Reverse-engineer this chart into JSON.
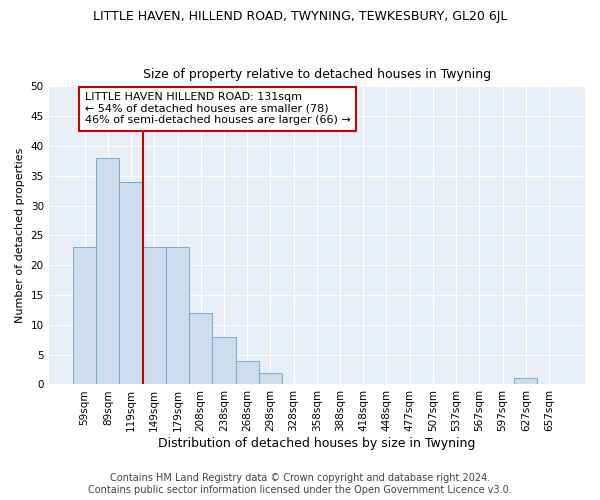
{
  "title": "LITTLE HAVEN, HILLEND ROAD, TWYNING, TEWKESBURY, GL20 6JL",
  "subtitle": "Size of property relative to detached houses in Twyning",
  "xlabel": "Distribution of detached houses by size in Twyning",
  "ylabel": "Number of detached properties",
  "categories": [
    "59sqm",
    "89sqm",
    "119sqm",
    "149sqm",
    "179sqm",
    "208sqm",
    "238sqm",
    "268sqm",
    "298sqm",
    "328sqm",
    "358sqm",
    "388sqm",
    "418sqm",
    "448sqm",
    "477sqm",
    "507sqm",
    "537sqm",
    "567sqm",
    "597sqm",
    "627sqm",
    "657sqm"
  ],
  "values": [
    23,
    38,
    34,
    23,
    23,
    12,
    8,
    4,
    2,
    0,
    0,
    0,
    0,
    0,
    0,
    0,
    0,
    0,
    0,
    1,
    0
  ],
  "bar_color": "#ccdcec",
  "bar_edgecolor": "#7aaaca",
  "vline_x": 2.5,
  "vline_color": "#cc0000",
  "ylim": [
    0,
    50
  ],
  "yticks": [
    0,
    5,
    10,
    15,
    20,
    25,
    30,
    35,
    40,
    45,
    50
  ],
  "annotation_title": "LITTLE HAVEN HILLEND ROAD: 131sqm",
  "annotation_line1": "← 54% of detached houses are smaller (78)",
  "annotation_line2": "46% of semi-detached houses are larger (66) →",
  "annotation_box_color": "#ffffff",
  "annotation_box_edgecolor": "#cc0000",
  "footer1": "Contains HM Land Registry data © Crown copyright and database right 2024.",
  "footer2": "Contains public sector information licensed under the Open Government Licence v3.0.",
  "plot_bg_color": "#e8eef5",
  "fig_bg_color": "#ffffff",
  "grid_color": "#ffffff",
  "title_fontsize": 9,
  "subtitle_fontsize": 9,
  "xlabel_fontsize": 9,
  "ylabel_fontsize": 8,
  "tick_fontsize": 7.5,
  "annotation_fontsize": 8,
  "footer_fontsize": 7
}
